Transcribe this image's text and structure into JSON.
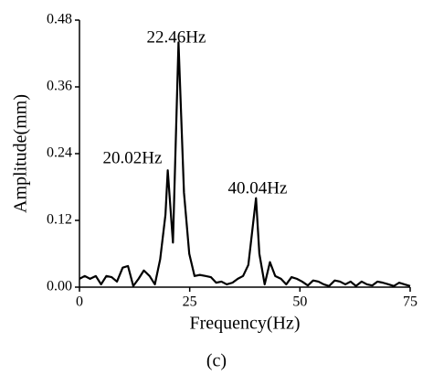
{
  "chart_data": {
    "type": "line",
    "x_label": "Frequency(Hz)",
    "y_label": "Amplitude(mm)",
    "caption": "(c)",
    "annotations": [
      "22.46Hz",
      "20.02Hz",
      "40.04Hz"
    ],
    "color": "#000000",
    "x": [
      0,
      1.2,
      2.4,
      3.7,
      4.9,
      6.1,
      7.3,
      8.5,
      9.8,
      11,
      12.2,
      13.4,
      14.6,
      15.9,
      17.1,
      18.3,
      19.5,
      20.02,
      21.2,
      22.46,
      23.7,
      24.9,
      26.1,
      27.3,
      28.6,
      29.8,
      31,
      32.2,
      33.4,
      34.7,
      35.9,
      37.1,
      38.3,
      40.04,
      40.8,
      42,
      43.2,
      44.4,
      45.7,
      46.9,
      48.1,
      49.3,
      50.5,
      51.8,
      53,
      54.2,
      55.4,
      56.6,
      57.9,
      59.1,
      60.3,
      61.5,
      62.7,
      64,
      65.2,
      66.4,
      67.6,
      68.8,
      70.1,
      71.3,
      72.5,
      73.7,
      75
    ],
    "values": [
      0.015,
      0.02,
      0.015,
      0.02,
      0.005,
      0.02,
      0.018,
      0.01,
      0.035,
      0.038,
      0.002,
      0.015,
      0.03,
      0.02,
      0.005,
      0.05,
      0.13,
      0.21,
      0.08,
      0.44,
      0.17,
      0.06,
      0.02,
      0.022,
      0.02,
      0.018,
      0.008,
      0.01,
      0.005,
      0.008,
      0.015,
      0.02,
      0.04,
      0.16,
      0.06,
      0.005,
      0.045,
      0.02,
      0.015,
      0.005,
      0.018,
      0.015,
      0.01,
      0.003,
      0.012,
      0.01,
      0.005,
      0.002,
      0.012,
      0.01,
      0.005,
      0.01,
      0.002,
      0.01,
      0.005,
      0.003,
      0.01,
      0.008,
      0.005,
      0.002,
      0.008,
      0.005,
      0.002
    ],
    "xlim": [
      0,
      75
    ],
    "xticks": [
      0,
      25,
      50,
      75
    ],
    "ylim": [
      0,
      0.48
    ],
    "yticks": [
      {
        "value": 0,
        "label": "0.00"
      },
      0.12,
      0.24,
      0.36,
      0.48
    ]
  }
}
